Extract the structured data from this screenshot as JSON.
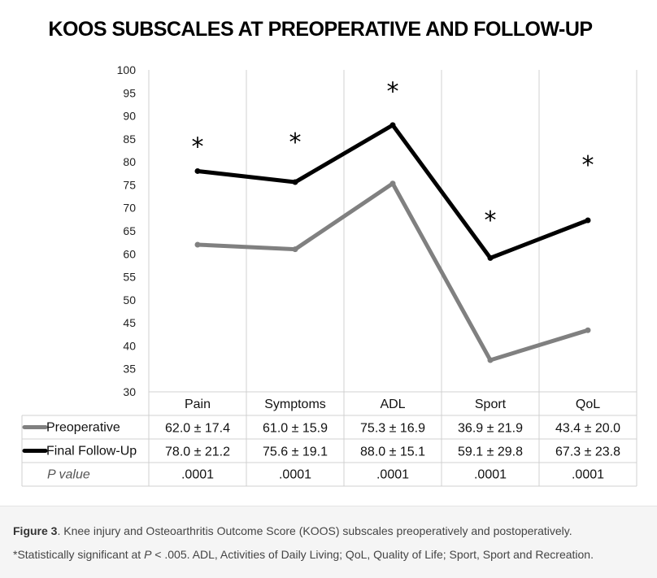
{
  "chart_data": {
    "type": "line",
    "title": "KOOS SUBSCALES AT PREOPERATIVE AND FOLLOW-UP",
    "categories": [
      "Pain",
      "Symptoms",
      "ADL",
      "Sport",
      "QoL"
    ],
    "ylim": [
      30,
      100
    ],
    "y_ticks": [
      30,
      35,
      40,
      45,
      50,
      55,
      60,
      65,
      70,
      75,
      80,
      85,
      90,
      95,
      100
    ],
    "grid": "vertical",
    "series": [
      {
        "name": "Preoperative",
        "color": "#808080",
        "values": [
          62.0,
          61.0,
          75.3,
          36.9,
          43.4
        ],
        "table": [
          "62.0 ± 17.4",
          "61.0 ± 15.9",
          "75.3 ± 16.9",
          "36.9 ± 21.9",
          "43.4 ± 20.0"
        ]
      },
      {
        "name": "Final Follow-Up",
        "color": "#000000",
        "values": [
          78.0,
          75.6,
          88.0,
          59.1,
          67.3
        ],
        "table": [
          "78.0 ± 21.2",
          "75.6 ± 19.1",
          "88.0 ± 15.1",
          "59.1 ± 29.8",
          "67.3 ± 23.8"
        ]
      }
    ],
    "p_value_label": "P value",
    "p_values": [
      ".0001",
      ".0001",
      ".0001",
      ".0001",
      ".0001"
    ],
    "significance_markers": [
      {
        "category": "Pain",
        "y": 84,
        "text": "*"
      },
      {
        "category": "Symptoms",
        "y": 85,
        "text": "*"
      },
      {
        "category": "ADL",
        "y": 96,
        "text": "*"
      },
      {
        "category": "Sport",
        "y": 68,
        "text": "*"
      },
      {
        "category": "QoL",
        "y": 80,
        "text": "*"
      }
    ]
  },
  "caption": {
    "figure_label": "Figure 3",
    "line1": ". Knee injury and Osteoarthritis Outcome Score (KOOS) subscales preoperatively and postoperatively.",
    "line2_before": "*Statistically significant at ",
    "line2_p": "P",
    "line2_after": " < .005. ADL, Activities of Daily Living; QoL, Quality of Life; Sport, Sport and Recreation."
  }
}
